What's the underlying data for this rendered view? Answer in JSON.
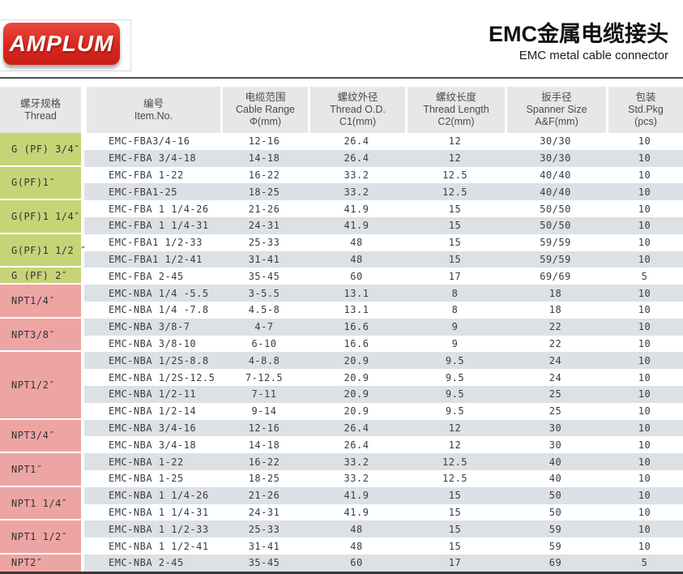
{
  "logo": {
    "text": "AMPLUM",
    "bg_color": "#da261e"
  },
  "header": {
    "title_zh": "EMC金属电缆接头",
    "title_en": "EMC metal cable connector"
  },
  "colors": {
    "green_thread": "#c7d377",
    "pink_thread": "#eda5a3",
    "row_stripe": "#dce1e6",
    "header_bg": "#e5e8e6"
  },
  "table": {
    "columns": [
      {
        "zh": "螺牙规格",
        "en": "Thread",
        "sub": ""
      },
      {
        "zh": "编号",
        "en": "Item.No.",
        "sub": ""
      },
      {
        "zh": "电缆范围",
        "en": "Cable Range",
        "sub": "Φ(mm)"
      },
      {
        "zh": "螺纹外径",
        "en": "Thread O.D.",
        "sub": "C1(mm)"
      },
      {
        "zh": "螺纹长度",
        "en": "Thread Length",
        "sub": "C2(mm)"
      },
      {
        "zh": "扳手径",
        "en": "Spanner Size",
        "sub": "A&F(mm)"
      },
      {
        "zh": "包装",
        "en": "Std.Pkg",
        "sub": "(pcs)"
      }
    ],
    "groups": [
      {
        "label": "G (PF) 3/4″",
        "color": "green",
        "rows": [
          {
            "item": "EMC-FBA3/4-16",
            "cable_range": "12-16",
            "thread_od": "26.4",
            "thread_length": "12",
            "spanner": "30/30",
            "pkg": "10"
          },
          {
            "item": "EMC-FBA 3/4-18",
            "cable_range": "14-18",
            "thread_od": "26.4",
            "thread_length": "12",
            "spanner": "30/30",
            "pkg": "10"
          }
        ]
      },
      {
        "label": "G(PF)1″",
        "color": "green",
        "rows": [
          {
            "item": "EMC-FBA 1-22",
            "cable_range": "16-22",
            "thread_od": "33.2",
            "thread_length": "12.5",
            "spanner": "40/40",
            "pkg": "10"
          },
          {
            "item": "EMC-FBA1-25",
            "cable_range": "18-25",
            "thread_od": "33.2",
            "thread_length": "12.5",
            "spanner": "40/40",
            "pkg": "10"
          }
        ]
      },
      {
        "label": "G(PF)1 1/4″",
        "color": "green",
        "rows": [
          {
            "item": "EMC-FBA 1 1/4-26",
            "cable_range": "21-26",
            "thread_od": "41.9",
            "thread_length": "15",
            "spanner": "50/50",
            "pkg": "10"
          },
          {
            "item": "EMC-FBA 1 1/4-31",
            "cable_range": "24-31",
            "thread_od": "41.9",
            "thread_length": "15",
            "spanner": "50/50",
            "pkg": "10"
          }
        ]
      },
      {
        "label": "G(PF)1 1/2 ″",
        "color": "green",
        "rows": [
          {
            "item": "EMC-FBA1 1/2-33",
            "cable_range": "25-33",
            "thread_od": "48",
            "thread_length": "15",
            "spanner": "59/59",
            "pkg": "10"
          },
          {
            "item": "EMC-FBA1 1/2-41",
            "cable_range": "31-41",
            "thread_od": "48",
            "thread_length": "15",
            "spanner": "59/59",
            "pkg": "10"
          }
        ]
      },
      {
        "label": "G (PF) 2″",
        "color": "green",
        "rows": [
          {
            "item": "EMC-FBA 2-45",
            "cable_range": "35-45",
            "thread_od": "60",
            "thread_length": "17",
            "spanner": "69/69",
            "pkg": "5"
          }
        ]
      },
      {
        "label": "NPT1/4″",
        "color": "pink",
        "rows": [
          {
            "item": "EMC-NBA 1/4 -5.5",
            "cable_range": "3-5.5",
            "thread_od": "13.1",
            "thread_length": "8",
            "spanner": "18",
            "pkg": "10"
          },
          {
            "item": "EMC-NBA 1/4 -7.8",
            "cable_range": "4.5-8",
            "thread_od": "13.1",
            "thread_length": "8",
            "spanner": "18",
            "pkg": "10"
          }
        ]
      },
      {
        "label": "NPT3/8″",
        "color": "pink",
        "rows": [
          {
            "item": "EMC-NBA 3/8-7",
            "cable_range": "4-7",
            "thread_od": "16.6",
            "thread_length": "9",
            "spanner": "22",
            "pkg": "10"
          },
          {
            "item": "EMC-NBA 3/8-10",
            "cable_range": "6-10",
            "thread_od": "16.6",
            "thread_length": "9",
            "spanner": "22",
            "pkg": "10"
          }
        ]
      },
      {
        "label": "NPT1/2″",
        "color": "pink",
        "rows": [
          {
            "item": "EMC-NBA 1/2S-8.8",
            "cable_range": "4-8.8",
            "thread_od": "20.9",
            "thread_length": "9.5",
            "spanner": "24",
            "pkg": "10"
          },
          {
            "item": "EMC-NBA 1/2S-12.5",
            "cable_range": "7-12.5",
            "thread_od": "20.9",
            "thread_length": "9.5",
            "spanner": "24",
            "pkg": "10"
          },
          {
            "item": "EMC-NBA 1/2-11",
            "cable_range": "7-11",
            "thread_od": "20.9",
            "thread_length": "9.5",
            "spanner": "25",
            "pkg": "10"
          },
          {
            "item": "EMC-NBA 1/2-14",
            "cable_range": "9-14",
            "thread_od": "20.9",
            "thread_length": "9.5",
            "spanner": "25",
            "pkg": "10"
          }
        ]
      },
      {
        "label": "NPT3/4″",
        "color": "pink",
        "rows": [
          {
            "item": "EMC-NBA 3/4-16",
            "cable_range": "12-16",
            "thread_od": "26.4",
            "thread_length": "12",
            "spanner": "30",
            "pkg": "10"
          },
          {
            "item": "EMC-NBA 3/4-18",
            "cable_range": "14-18",
            "thread_od": "26.4",
            "thread_length": "12",
            "spanner": "30",
            "pkg": "10"
          }
        ]
      },
      {
        "label": "NPT1″",
        "color": "pink",
        "rows": [
          {
            "item": "EMC-NBA 1-22",
            "cable_range": "16-22",
            "thread_od": "33.2",
            "thread_length": "12.5",
            "spanner": "40",
            "pkg": "10"
          },
          {
            "item": "EMC-NBA 1-25",
            "cable_range": "18-25",
            "thread_od": "33.2",
            "thread_length": "12.5",
            "spanner": "40",
            "pkg": "10"
          }
        ]
      },
      {
        "label": "NPT1 1/4″",
        "color": "pink",
        "rows": [
          {
            "item": "EMC-NBA 1 1/4-26",
            "cable_range": "21-26",
            "thread_od": "41.9",
            "thread_length": "15",
            "spanner": "50",
            "pkg": "10"
          },
          {
            "item": "EMC-NBA 1 1/4-31",
            "cable_range": "24-31",
            "thread_od": "41.9",
            "thread_length": "15",
            "spanner": "50",
            "pkg": "10"
          }
        ]
      },
      {
        "label": "NPT1 1/2″",
        "color": "pink",
        "rows": [
          {
            "item": "EMC-NBA 1 1/2-33",
            "cable_range": "25-33",
            "thread_od": "48",
            "thread_length": "15",
            "spanner": "59",
            "pkg": "10"
          },
          {
            "item": "EMC-NBA 1 1/2-41",
            "cable_range": "31-41",
            "thread_od": "48",
            "thread_length": "15",
            "spanner": "59",
            "pkg": "10"
          }
        ]
      },
      {
        "label": "NPT2″",
        "color": "pink",
        "rows": [
          {
            "item": "EMC-NBA 2-45",
            "cable_range": "35-45",
            "thread_od": "60",
            "thread_length": "17",
            "spanner": "69",
            "pkg": "5"
          }
        ]
      }
    ]
  }
}
